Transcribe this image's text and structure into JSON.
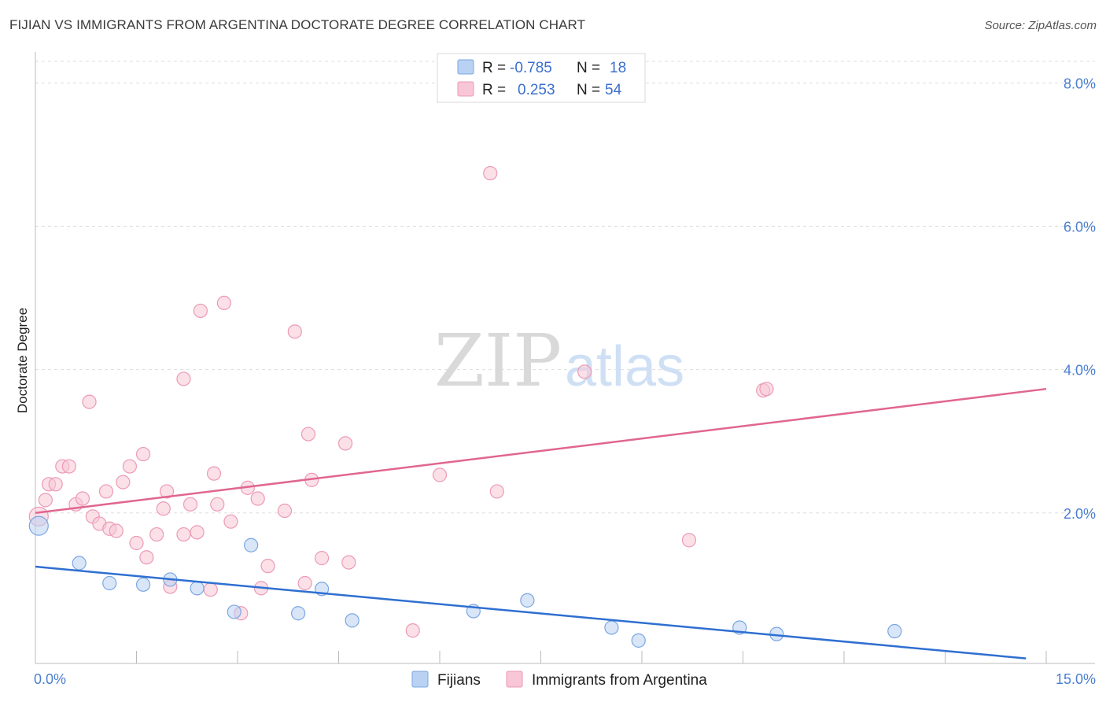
{
  "title": "FIJIAN VS IMMIGRANTS FROM ARGENTINA DOCTORATE DEGREE CORRELATION CHART",
  "source": "Source: ZipAtlas.com",
  "watermark": {
    "part1": "ZIP",
    "part2": "atlas"
  },
  "colors": {
    "blue_fill": "#b9d2f3",
    "blue_stroke": "#7aa6e2",
    "blue_line": "#2f6fd1",
    "pink_fill": "#f8c6d6",
    "pink_stroke": "#ec9ab6",
    "pink_line": "#e06691",
    "grid": "#dddddd",
    "axis_label": "#4a7fd0"
  },
  "legend_stats": [
    {
      "r_label": "R =",
      "r_value": "-0.785",
      "n_label": "N =",
      "n_value": "18"
    },
    {
      "r_label": "R =",
      "r_value": "0.253",
      "n_label": "N =",
      "n_value": "54"
    }
  ],
  "chart_data": {
    "type": "scatter",
    "xlabel": "",
    "ylabel": "Doctorate Degree",
    "xlim": [
      0,
      15
    ],
    "ylim": [
      -0.1,
      8.3
    ],
    "x_tick_labels": [
      "0.0%",
      "15.0%"
    ],
    "y_ticks": [
      2,
      4,
      6,
      8
    ],
    "y_tick_labels": [
      "2.0%",
      "4.0%",
      "6.0%",
      "8.0%"
    ],
    "legend": [
      "Fijians",
      "Immigrants from Argentina"
    ],
    "series": [
      {
        "name": "Fijians",
        "color": "blue",
        "trend": {
          "x": [
            0,
            14.7
          ],
          "y": [
            1.25,
            -0.03
          ]
        },
        "points": [
          [
            0.05,
            1.82
          ],
          [
            0.65,
            1.3
          ],
          [
            1.1,
            1.02
          ],
          [
            1.6,
            1.0
          ],
          [
            2.0,
            1.07
          ],
          [
            2.4,
            0.95
          ],
          [
            2.95,
            0.62
          ],
          [
            3.2,
            1.55
          ],
          [
            3.9,
            0.6
          ],
          [
            4.25,
            0.94
          ],
          [
            4.7,
            0.5
          ],
          [
            6.5,
            0.63
          ],
          [
            7.3,
            0.78
          ],
          [
            8.55,
            0.4
          ],
          [
            8.95,
            0.22
          ],
          [
            10.45,
            0.4
          ],
          [
            11.0,
            0.31
          ],
          [
            12.75,
            0.35
          ]
        ]
      },
      {
        "name": "Immigrants from Argentina",
        "color": "pink",
        "trend": {
          "x": [
            0,
            15
          ],
          "y": [
            2.0,
            3.73
          ]
        },
        "points": [
          [
            0.05,
            1.95
          ],
          [
            0.15,
            2.18
          ],
          [
            0.2,
            2.4
          ],
          [
            0.3,
            2.4
          ],
          [
            0.4,
            2.65
          ],
          [
            0.5,
            2.65
          ],
          [
            0.6,
            2.12
          ],
          [
            0.7,
            2.2
          ],
          [
            0.8,
            3.55
          ],
          [
            0.85,
            1.95
          ],
          [
            0.95,
            1.85
          ],
          [
            1.05,
            2.3
          ],
          [
            1.1,
            1.78
          ],
          [
            1.2,
            1.75
          ],
          [
            1.3,
            2.43
          ],
          [
            1.4,
            2.65
          ],
          [
            1.5,
            1.58
          ],
          [
            1.6,
            2.82
          ],
          [
            1.65,
            1.38
          ],
          [
            1.8,
            1.7
          ],
          [
            1.9,
            2.06
          ],
          [
            1.95,
            2.3
          ],
          [
            2.0,
            0.97
          ],
          [
            2.2,
            1.7
          ],
          [
            2.2,
            3.87
          ],
          [
            2.3,
            2.12
          ],
          [
            2.4,
            1.73
          ],
          [
            2.45,
            4.82
          ],
          [
            2.6,
            0.93
          ],
          [
            2.65,
            2.55
          ],
          [
            2.7,
            2.12
          ],
          [
            2.8,
            4.93
          ],
          [
            2.9,
            1.88
          ],
          [
            3.05,
            0.6
          ],
          [
            3.15,
            2.35
          ],
          [
            3.3,
            2.2
          ],
          [
            3.35,
            0.95
          ],
          [
            3.45,
            1.26
          ],
          [
            3.7,
            2.03
          ],
          [
            3.85,
            4.53
          ],
          [
            4.0,
            1.02
          ],
          [
            4.05,
            3.1
          ],
          [
            4.1,
            2.46
          ],
          [
            4.25,
            1.37
          ],
          [
            4.6,
            2.97
          ],
          [
            4.65,
            1.31
          ],
          [
            5.6,
            0.36
          ],
          [
            6.0,
            2.53
          ],
          [
            6.75,
            6.74
          ],
          [
            6.85,
            2.3
          ],
          [
            8.15,
            3.97
          ],
          [
            9.7,
            1.62
          ],
          [
            10.8,
            3.71
          ],
          [
            10.85,
            3.73
          ]
        ]
      }
    ]
  }
}
